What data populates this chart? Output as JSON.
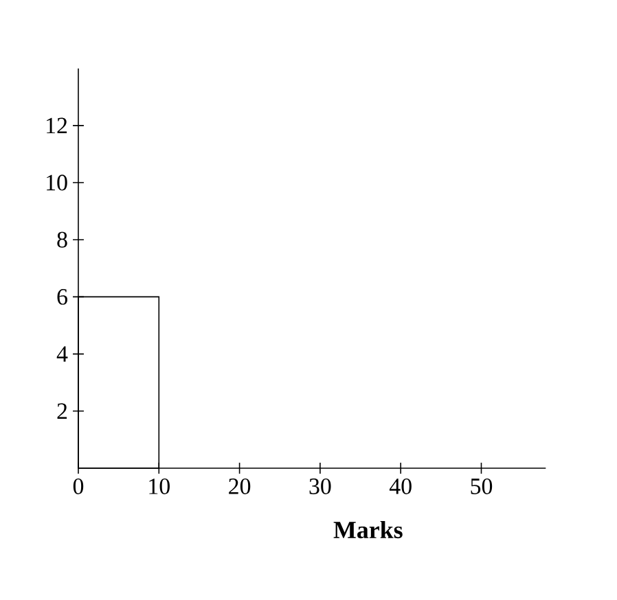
{
  "chart_data": {
    "type": "histogram",
    "xlabel": "**Marks**",
    "bins": [
      0,
      10
    ],
    "values": [
      6
    ],
    "xlim": [
      0,
      58
    ],
    "ylim": [
      0,
      14
    ],
    "xticks": [
      0,
      10,
      20,
      30,
      40,
      50
    ],
    "yticks": [
      2,
      4,
      6,
      8,
      10,
      12
    ],
    "grid": false
  }
}
